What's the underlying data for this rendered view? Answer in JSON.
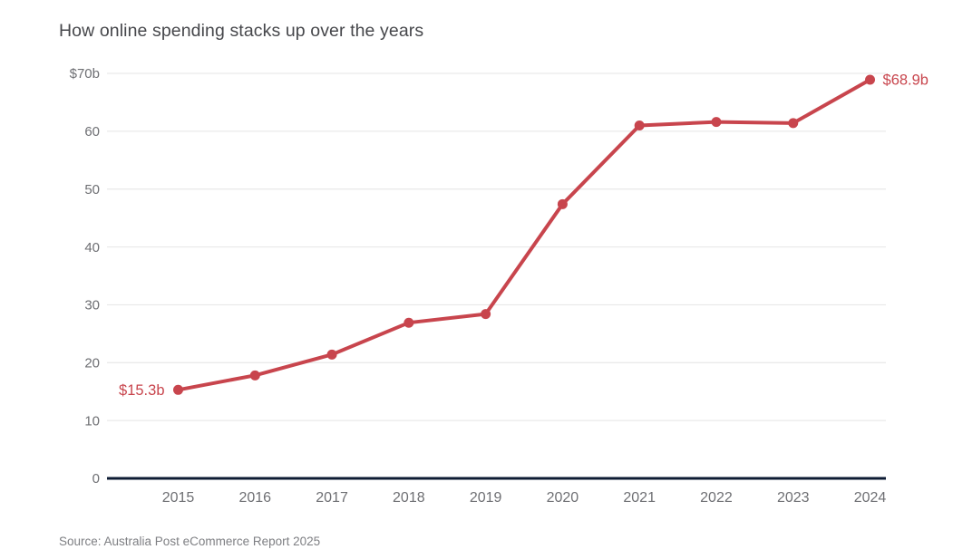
{
  "source_note": "Source: Australia Post eCommerce Report 2025",
  "colors": {
    "accent": "#c8454d",
    "axis_line": "#0d1b33",
    "gridline": "#e4e4e4",
    "tick_label": "#6e6f73",
    "title": "#46474b",
    "source": "#7e7f83",
    "background": "#ffffff"
  },
  "chart_data": {
    "type": "line",
    "title": "How online spending stacks up over the years",
    "categories": [
      "2015",
      "2016",
      "2017",
      "2018",
      "2019",
      "2020",
      "2021",
      "2022",
      "2023",
      "2024"
    ],
    "values": [
      15.3,
      17.8,
      21.4,
      26.9,
      28.4,
      47.4,
      61.0,
      61.6,
      61.4,
      68.9
    ],
    "value_unit": "billions AUD",
    "xlabel": "",
    "ylabel": "",
    "ylim": [
      0,
      70
    ],
    "grid": "horizontal",
    "legend": "none",
    "y_ticks": [
      {
        "value": 0,
        "label": "0"
      },
      {
        "value": 10,
        "label": "10"
      },
      {
        "value": 20,
        "label": "20"
      },
      {
        "value": 30,
        "label": "30"
      },
      {
        "value": 40,
        "label": "40"
      },
      {
        "value": 50,
        "label": "50"
      },
      {
        "value": 60,
        "label": "60"
      },
      {
        "value": 70,
        "label": "$70b"
      }
    ],
    "annotations": [
      {
        "category": "2015",
        "text": "$15.3b",
        "side": "left"
      },
      {
        "category": "2024",
        "text": "$68.9b",
        "side": "right"
      }
    ]
  }
}
